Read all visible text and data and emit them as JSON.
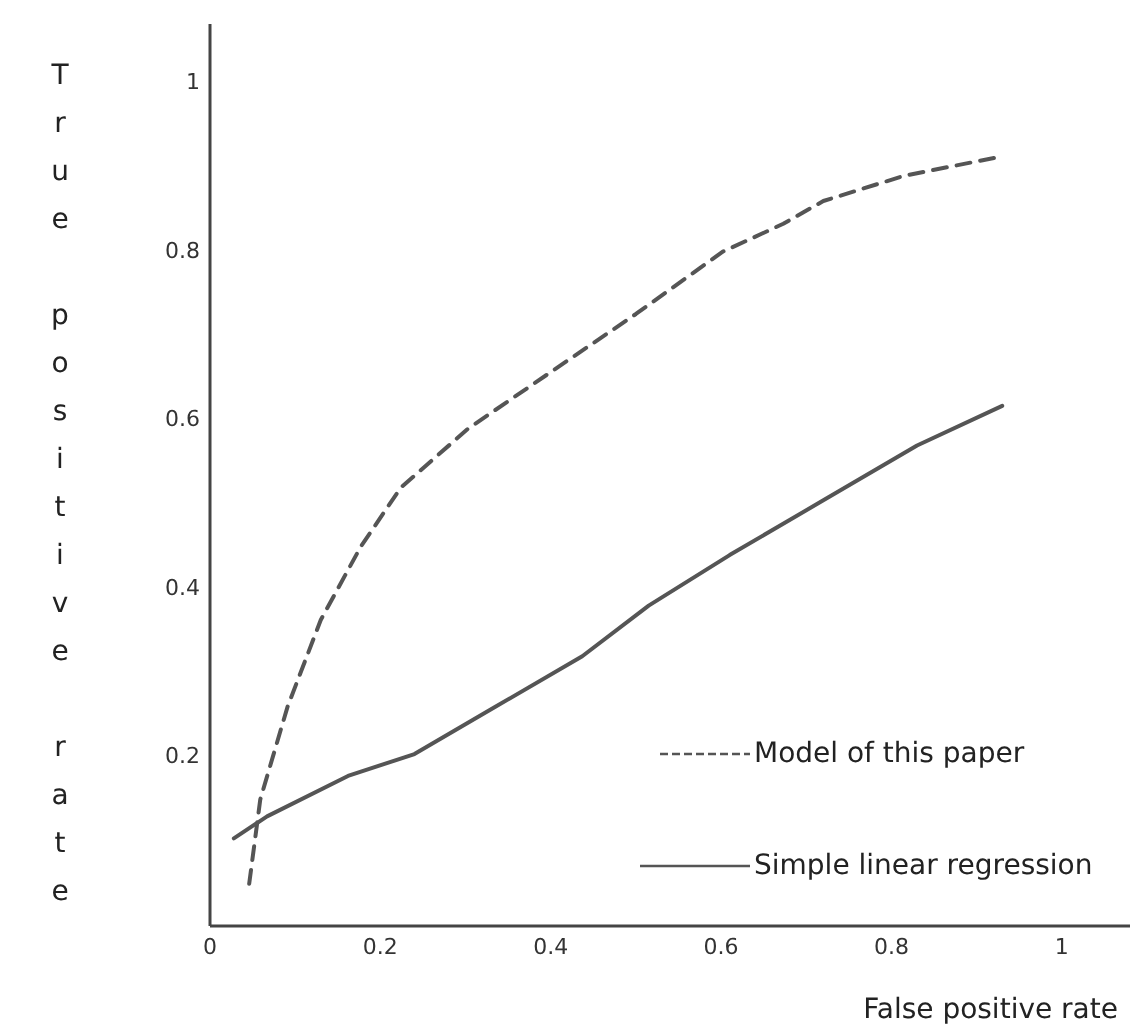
{
  "chart_data": {
    "type": "line",
    "xlabel": "False positive rate",
    "ylabel": "True positive rate",
    "xlim": [
      0,
      1.08
    ],
    "ylim": [
      0,
      1.07
    ],
    "xticks": [
      0,
      0.2,
      0.4,
      0.6,
      0.8,
      1
    ],
    "yticks": [
      0.2,
      0.4,
      0.6,
      0.8,
      1
    ],
    "grid": false,
    "legend": "bottom right",
    "series": [
      {
        "name": "Model of this paper",
        "color": "#555555",
        "line_style": "dashed",
        "x": [
          0.046,
          0.059,
          0.091,
          0.13,
          0.177,
          0.224,
          0.303,
          0.397,
          0.5,
          0.602,
          0.673,
          0.72,
          0.815,
          0.93
        ],
        "values": [
          0.05,
          0.15,
          0.26,
          0.363,
          0.45,
          0.52,
          0.59,
          0.655,
          0.726,
          0.8,
          0.833,
          0.86,
          0.89,
          0.913
        ]
      },
      {
        "name": "Simple linear regression",
        "color": "#555555",
        "line_style": "solid",
        "x": [
          0.028,
          0.067,
          0.162,
          0.24,
          0.335,
          0.437,
          0.515,
          0.61,
          0.72,
          0.83,
          0.93
        ],
        "values": [
          0.104,
          0.13,
          0.178,
          0.204,
          0.26,
          0.32,
          0.38,
          0.44,
          0.505,
          0.57,
          0.617
        ]
      }
    ]
  }
}
